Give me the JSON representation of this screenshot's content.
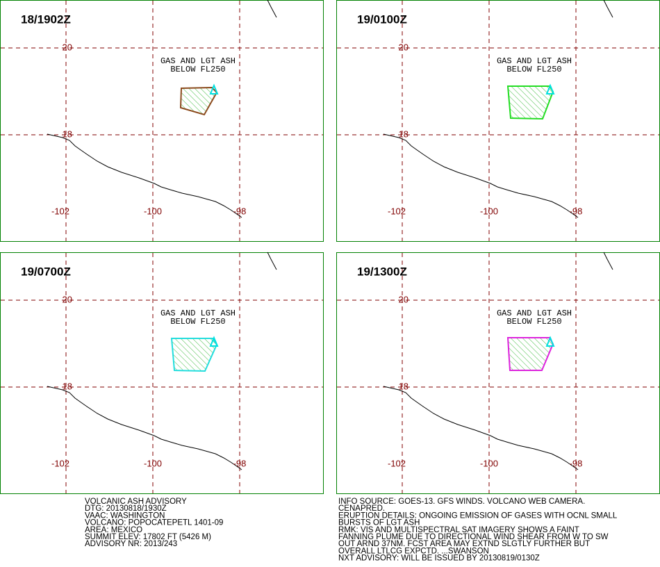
{
  "panels": [
    {
      "time": "18/1902Z",
      "annotation": [
        "GAS AND LGT ASH",
        "BELOW FL250"
      ],
      "lat_labels": [
        "20",
        "18"
      ],
      "lon_labels": [
        "-102",
        "-100",
        "-98"
      ]
    },
    {
      "time": "19/0100Z",
      "annotation": [
        "GAS AND LGT ASH",
        "BELOW FL250"
      ],
      "lat_labels": [
        "20",
        "18"
      ],
      "lon_labels": [
        "-102",
        "-100",
        "-98"
      ]
    },
    {
      "time": "19/0700Z",
      "annotation": [
        "GAS AND LGT ASH",
        "BELOW FL250"
      ],
      "lat_labels": [
        "20",
        "18"
      ],
      "lon_labels": [
        "-102",
        "-100",
        "-98"
      ]
    },
    {
      "time": "19/1300Z",
      "annotation": [
        "GAS AND LGT ASH",
        "BELOW FL250"
      ],
      "lat_labels": [
        "20",
        "18"
      ],
      "lon_labels": [
        "-102",
        "-100",
        "-98"
      ]
    }
  ],
  "advisory": [
    "VOLCANIC ASH ADVISORY",
    "DTG: 20130818/1930Z",
    "VAAC: WASHINGTON",
    "VOLCANO: POPOCATEPETL 1401-09",
    "AREA: MEXICO",
    "SUMMIT ELEV: 17802 FT (5426 M)",
    "ADVISORY NR: 2013/243"
  ],
  "details": [
    "INFO SOURCE: GOES-13. GFS WINDS. VOLCANO WEB CAMERA.",
    "CENAPRED.",
    "ERUPTION DETAILS: ONGOING EMISSION OF GASES WITH OCNL SMALL",
    "BURSTS OF LGT ASH",
    "RMK: VIS AND MULTISPECTRAL SAT IMAGERY SHOWS A FAINT",
    "FANNING PLUME DUE TO DIRECTIONAL WIND SHEAR FROM W TO SW",
    "OUT ARND 37NM. FCST AREA MAY EXTND SLGTLY FURTHER BUT",
    "OVERALL LTLCG EXPCTD. ...SWANSON",
    "NXT ADVISORY: WILL BE ISSUED BY 20130819/0130Z"
  ]
}
